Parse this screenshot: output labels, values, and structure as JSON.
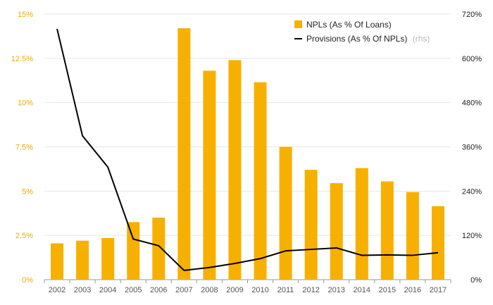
{
  "chart_data": {
    "type": "bar",
    "title": "",
    "xlabel": "",
    "ylabel": "",
    "categories": [
      "2002",
      "2003",
      "2004",
      "2005",
      "2006",
      "2007",
      "2008",
      "2009",
      "2010",
      "2011",
      "2012",
      "2013",
      "2014",
      "2015",
      "2016",
      "2017"
    ],
    "series": [
      {
        "name": "NPLs (As % Of Loans)",
        "type": "bar",
        "axis": "left",
        "color": "#f7b000",
        "values": [
          2.05,
          2.2,
          2.35,
          3.25,
          3.5,
          14.2,
          11.8,
          12.4,
          11.15,
          7.5,
          6.2,
          5.45,
          6.3,
          5.55,
          4.95,
          4.15
        ]
      },
      {
        "name": "Provisions (As % Of NPLs)",
        "type": "line",
        "axis": "right",
        "color": "#000000",
        "values": [
          680,
          390,
          305,
          110,
          92,
          25,
          33,
          44,
          57,
          78,
          82,
          86,
          66,
          67,
          66,
          73
        ]
      }
    ],
    "legend": {
      "npl_label": "NPLs (As % Of Loans)",
      "prov_label": "Provisions (As % Of NPLs)",
      "prov_note": "(rhs)",
      "position": "top-right"
    },
    "left_axis": {
      "ylim": [
        0,
        15
      ],
      "ticks": [
        0,
        2.5,
        5,
        7.5,
        10,
        12.5,
        15
      ],
      "tick_labels": [
        "0%",
        "2.5%",
        "5%",
        "7.5%",
        "10%",
        "12.5%",
        "15%"
      ]
    },
    "right_axis": {
      "ylim": [
        0,
        720
      ],
      "ticks": [
        0,
        120,
        240,
        360,
        480,
        600,
        720
      ],
      "tick_labels": [
        "0%",
        "120%",
        "240%",
        "360%",
        "480%",
        "600%",
        "720%"
      ]
    },
    "grid": true
  }
}
